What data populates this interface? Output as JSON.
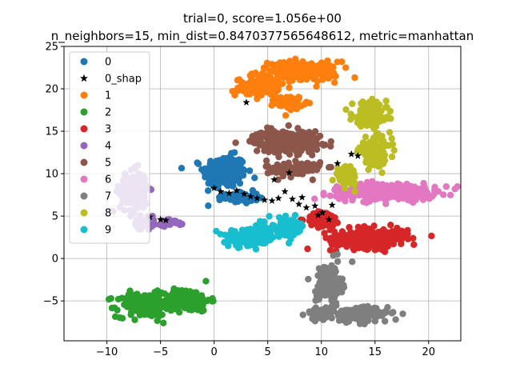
{
  "chart_data": {
    "type": "scatter",
    "title": "trial=0, score=1.056e+00",
    "subtitle": "n_neighbors=15, min_dist=0.8470377565648612, metric=manhattan",
    "xlabel": "",
    "ylabel": "",
    "xlim": [
      -14,
      23
    ],
    "ylim": [
      -9.7,
      25
    ],
    "xticks": [
      -10,
      -5,
      0,
      5,
      10,
      15,
      20
    ],
    "yticks": [
      -5,
      0,
      5,
      10,
      15,
      20,
      25
    ],
    "grid": true,
    "legend_position": "upper-left",
    "series": [
      {
        "name": "0",
        "marker": "circle",
        "color": "#1f77b4",
        "clusters": [
          {
            "center": [
              1.0,
              10.2
            ],
            "spread": [
              2.0,
              1.9
            ],
            "n": 240
          },
          {
            "center": [
              2.5,
              7.2
            ],
            "spread": [
              1.6,
              0.7
            ],
            "n": 60
          }
        ]
      },
      {
        "name": "0_shap",
        "marker": "star",
        "color": "#000000",
        "points": [
          [
            0.0,
            8.3
          ],
          [
            0.6,
            7.9
          ],
          [
            1.4,
            7.7
          ],
          [
            2.1,
            8.0
          ],
          [
            2.8,
            7.6
          ],
          [
            3.4,
            7.3
          ],
          [
            4.0,
            7.1
          ],
          [
            4.7,
            6.9
          ],
          [
            5.4,
            6.8
          ],
          [
            6.0,
            7.1
          ],
          [
            6.6,
            7.9
          ],
          [
            7.3,
            7.0
          ],
          [
            7.9,
            6.4
          ],
          [
            8.6,
            6.0
          ],
          [
            9.4,
            6.2
          ],
          [
            10.1,
            5.4
          ],
          [
            10.7,
            4.6
          ],
          [
            11.5,
            11.2
          ],
          [
            12.8,
            12.3
          ],
          [
            13.4,
            12.1
          ],
          [
            11.0,
            6.3
          ],
          [
            -6.0,
            4.9
          ],
          [
            -5.0,
            4.6
          ],
          [
            -4.5,
            4.5
          ],
          [
            3.0,
            18.4
          ],
          [
            5.6,
            9.3
          ],
          [
            7.0,
            10.1
          ],
          [
            9.7,
            5.1
          ],
          [
            8.2,
            7.2
          ]
        ]
      },
      {
        "name": "1",
        "marker": "circle",
        "color": "#ff7f0e",
        "clusters": [
          {
            "center": [
              7.8,
              22.0
            ],
            "spread": [
              3.8,
              1.2
            ],
            "n": 200
          },
          {
            "center": [
              4.0,
              20.2
            ],
            "spread": [
              2.0,
              1.0
            ],
            "n": 110
          },
          {
            "center": [
              7.0,
              18.4
            ],
            "spread": [
              1.3,
              0.8
            ],
            "n": 60
          }
        ]
      },
      {
        "name": "2",
        "marker": "circle",
        "color": "#2ca02c",
        "clusters": [
          {
            "center": [
              -6.5,
              -5.5
            ],
            "spread": [
              2.6,
              1.4
            ],
            "n": 200
          },
          {
            "center": [
              -2.5,
              -4.9
            ],
            "spread": [
              2.1,
              1.3
            ],
            "n": 150
          }
        ]
      },
      {
        "name": "3",
        "marker": "circle",
        "color": "#d62728",
        "clusters": [
          {
            "center": [
              10.2,
              4.6
            ],
            "spread": [
              1.6,
              0.9
            ],
            "n": 90
          },
          {
            "center": [
              14.5,
              2.4
            ],
            "spread": [
              3.6,
              1.2
            ],
            "n": 260
          }
        ]
      },
      {
        "name": "4",
        "marker": "circle",
        "color": "#9467bd",
        "clusters": [
          {
            "center": [
              -7.5,
              7.8
            ],
            "spread": [
              1.3,
              2.4
            ],
            "n": 160
          },
          {
            "center": [
              -6.5,
              4.0
            ],
            "spread": [
              1.0,
              0.8
            ],
            "n": 50
          },
          {
            "center": [
              -4.0,
              4.3
            ],
            "spread": [
              1.1,
              0.4
            ],
            "n": 30
          }
        ]
      },
      {
        "name": "5",
        "marker": "circle",
        "color": "#8c564b",
        "clusters": [
          {
            "center": [
              6.8,
              13.8
            ],
            "spread": [
              3.2,
              1.3
            ],
            "n": 220
          },
          {
            "center": [
              7.5,
              10.6
            ],
            "spread": [
              2.6,
              1.0
            ],
            "n": 100
          }
        ]
      },
      {
        "name": "6",
        "marker": "circle",
        "color": "#e377c2",
        "clusters": [
          {
            "center": [
              15.8,
              7.9
            ],
            "spread": [
              4.8,
              1.0
            ],
            "n": 320
          }
        ]
      },
      {
        "name": "7",
        "marker": "circle",
        "color": "#7f7f7f",
        "clusters": [
          {
            "center": [
              10.7,
              -3.0
            ],
            "spread": [
              1.2,
              2.4
            ],
            "n": 130
          },
          {
            "center": [
              13.5,
              -6.6
            ],
            "spread": [
              2.7,
              0.9
            ],
            "n": 150
          },
          {
            "center": [
              9.8,
              -6.5
            ],
            "spread": [
              1.2,
              0.7
            ],
            "n": 50
          }
        ]
      },
      {
        "name": "8",
        "marker": "circle",
        "color": "#bcbd22",
        "clusters": [
          {
            "center": [
              14.5,
              17.0
            ],
            "spread": [
              1.6,
              1.4
            ],
            "n": 160
          },
          {
            "center": [
              15.0,
              12.6
            ],
            "spread": [
              1.5,
              1.6
            ],
            "n": 110
          },
          {
            "center": [
              12.3,
              9.8
            ],
            "spread": [
              1.0,
              1.1
            ],
            "n": 60
          }
        ]
      },
      {
        "name": "9",
        "marker": "circle",
        "color": "#17becf",
        "clusters": [
          {
            "center": [
              3.5,
              2.4
            ],
            "spread": [
              2.2,
              1.0
            ],
            "n": 160
          },
          {
            "center": [
              6.8,
              3.7
            ],
            "spread": [
              1.7,
              1.1
            ],
            "n": 120
          }
        ]
      }
    ]
  }
}
